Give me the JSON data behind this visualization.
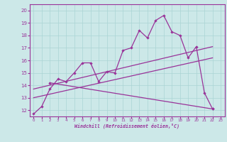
{
  "xlabel": "Windchill (Refroidissement éolien,°C)",
  "bg_color": "#cce8e8",
  "grid_color": "#aad4d4",
  "line_color": "#993399",
  "xlim": [
    -0.5,
    23.5
  ],
  "ylim": [
    11.5,
    20.5
  ],
  "xticks": [
    0,
    1,
    2,
    3,
    4,
    5,
    6,
    7,
    8,
    9,
    10,
    11,
    12,
    13,
    14,
    15,
    16,
    17,
    18,
    19,
    20,
    21,
    22,
    23
  ],
  "yticks": [
    12,
    13,
    14,
    15,
    16,
    17,
    18,
    19,
    20
  ],
  "main_x": [
    0,
    1,
    2,
    3,
    4,
    5,
    6,
    7,
    8,
    9,
    10,
    11,
    12,
    13,
    14,
    15,
    16,
    17,
    18,
    19,
    20,
    21,
    22
  ],
  "main_y": [
    11.7,
    12.3,
    13.7,
    14.5,
    14.3,
    15.0,
    15.8,
    15.8,
    14.3,
    15.1,
    15.0,
    16.8,
    17.0,
    18.4,
    17.8,
    19.2,
    19.6,
    18.3,
    18.0,
    16.2,
    17.1,
    13.4,
    12.1
  ],
  "trend1_x": [
    0,
    22
  ],
  "trend1_y": [
    13.0,
    16.2
  ],
  "trend2_x": [
    0,
    22
  ],
  "trend2_y": [
    13.7,
    17.1
  ],
  "decline_x": [
    2,
    22
  ],
  "decline_y": [
    14.2,
    12.1
  ]
}
